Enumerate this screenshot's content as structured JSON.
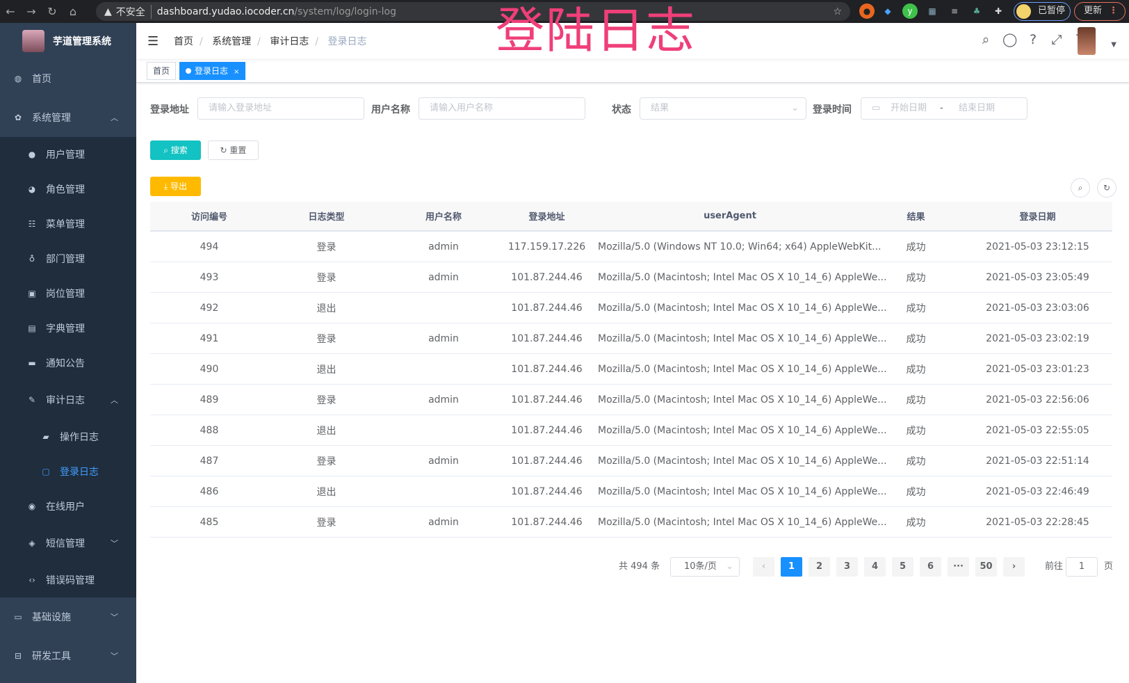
{
  "browser": {
    "insecure_label": "不安全",
    "url_host": "dashboard.yudao.iocoder.cn",
    "url_path": "/system/log/login-log",
    "paused_label": "已暂停",
    "update_label": "更新"
  },
  "overlay_title": "登陆日志",
  "sidebar": {
    "app_title": "芋道管理系统",
    "items": [
      {
        "label": "首页",
        "icon": "dashboard-icon",
        "level": 0
      },
      {
        "label": "系统管理",
        "icon": "gear-icon",
        "level": 0,
        "expanded": true
      },
      {
        "label": "用户管理",
        "icon": "user-icon",
        "level": 1
      },
      {
        "label": "角色管理",
        "icon": "peoples-icon",
        "level": 1
      },
      {
        "label": "菜单管理",
        "icon": "tree-table-icon",
        "level": 1
      },
      {
        "label": "部门管理",
        "icon": "tree-icon",
        "level": 1
      },
      {
        "label": "岗位管理",
        "icon": "post-icon",
        "level": 1
      },
      {
        "label": "字典管理",
        "icon": "dict-icon",
        "level": 1
      },
      {
        "label": "通知公告",
        "icon": "message-icon",
        "level": 1
      },
      {
        "label": "审计日志",
        "icon": "log-icon",
        "level": 1,
        "expanded": true
      },
      {
        "label": "操作日志",
        "icon": "form-icon",
        "level": 2
      },
      {
        "label": "登录日志",
        "icon": "logininfor-icon",
        "level": 2,
        "active": true
      },
      {
        "label": "在线用户",
        "icon": "online-icon",
        "level": 1
      },
      {
        "label": "短信管理",
        "icon": "validcode-icon",
        "level": 1,
        "collapsed": true
      },
      {
        "label": "错误码管理",
        "icon": "code-icon",
        "level": 1
      },
      {
        "label": "基础设施",
        "icon": "monitor-icon",
        "level": 0,
        "collapsed": true
      },
      {
        "label": "研发工具",
        "icon": "tool-icon",
        "level": 0,
        "collapsed": true
      }
    ]
  },
  "breadcrumb": [
    "首页",
    "系统管理",
    "审计日志",
    "登录日志"
  ],
  "tags": [
    {
      "label": "首页"
    },
    {
      "label": "登录日志",
      "active": true
    }
  ],
  "filters": {
    "login_address": {
      "label": "登录地址",
      "placeholder": "请输入登录地址"
    },
    "username": {
      "label": "用户名称",
      "placeholder": "请输入用户名称"
    },
    "status": {
      "label": "状态",
      "placeholder": "结果"
    },
    "login_time": {
      "label": "登录时间",
      "start_placeholder": "开始日期",
      "separator": "-",
      "end_placeholder": "结束日期"
    }
  },
  "buttons": {
    "search": "搜索",
    "reset": "重置",
    "export": "导出"
  },
  "colors": {
    "sidebar": "#304156",
    "submenu": "#1f2d3d",
    "primary": "#1890ff",
    "search": "#13c2c2",
    "export": "#ffba00",
    "overlay": "#ef3f79"
  },
  "table": {
    "columns": [
      "访问编号",
      "日志类型",
      "用户名称",
      "登录地址",
      "userAgent",
      "结果",
      "登录日期"
    ],
    "rows": [
      [
        "494",
        "登录",
        "admin",
        "117.159.17.226",
        "Mozilla/5.0 (Windows NT 10.0; Win64; x64) AppleWebKit...",
        "成功",
        "2021-05-03 23:12:15"
      ],
      [
        "493",
        "登录",
        "admin",
        "101.87.244.46",
        "Mozilla/5.0 (Macintosh; Intel Mac OS X 10_14_6) AppleWe...",
        "成功",
        "2021-05-03 23:05:49"
      ],
      [
        "492",
        "退出",
        "",
        "101.87.244.46",
        "Mozilla/5.0 (Macintosh; Intel Mac OS X 10_14_6) AppleWe...",
        "成功",
        "2021-05-03 23:03:06"
      ],
      [
        "491",
        "登录",
        "admin",
        "101.87.244.46",
        "Mozilla/5.0 (Macintosh; Intel Mac OS X 10_14_6) AppleWe...",
        "成功",
        "2021-05-03 23:02:19"
      ],
      [
        "490",
        "退出",
        "",
        "101.87.244.46",
        "Mozilla/5.0 (Macintosh; Intel Mac OS X 10_14_6) AppleWe...",
        "成功",
        "2021-05-03 23:01:23"
      ],
      [
        "489",
        "登录",
        "admin",
        "101.87.244.46",
        "Mozilla/5.0 (Macintosh; Intel Mac OS X 10_14_6) AppleWe...",
        "成功",
        "2021-05-03 22:56:06"
      ],
      [
        "488",
        "退出",
        "",
        "101.87.244.46",
        "Mozilla/5.0 (Macintosh; Intel Mac OS X 10_14_6) AppleWe...",
        "成功",
        "2021-05-03 22:55:05"
      ],
      [
        "487",
        "登录",
        "admin",
        "101.87.244.46",
        "Mozilla/5.0 (Macintosh; Intel Mac OS X 10_14_6) AppleWe...",
        "成功",
        "2021-05-03 22:51:14"
      ],
      [
        "486",
        "退出",
        "",
        "101.87.244.46",
        "Mozilla/5.0 (Macintosh; Intel Mac OS X 10_14_6) AppleWe...",
        "成功",
        "2021-05-03 22:46:49"
      ],
      [
        "485",
        "登录",
        "admin",
        "101.87.244.46",
        "Mozilla/5.0 (Macintosh; Intel Mac OS X 10_14_6) AppleWe...",
        "成功",
        "2021-05-03 22:28:45"
      ]
    ]
  },
  "pagination": {
    "total_text": "共 494 条",
    "page_size": "10条/页",
    "pages": [
      "1",
      "2",
      "3",
      "4",
      "5",
      "6",
      "···",
      "50"
    ],
    "current": "1",
    "goto_label": "前往",
    "goto_value": "1",
    "goto_suffix": "页"
  }
}
